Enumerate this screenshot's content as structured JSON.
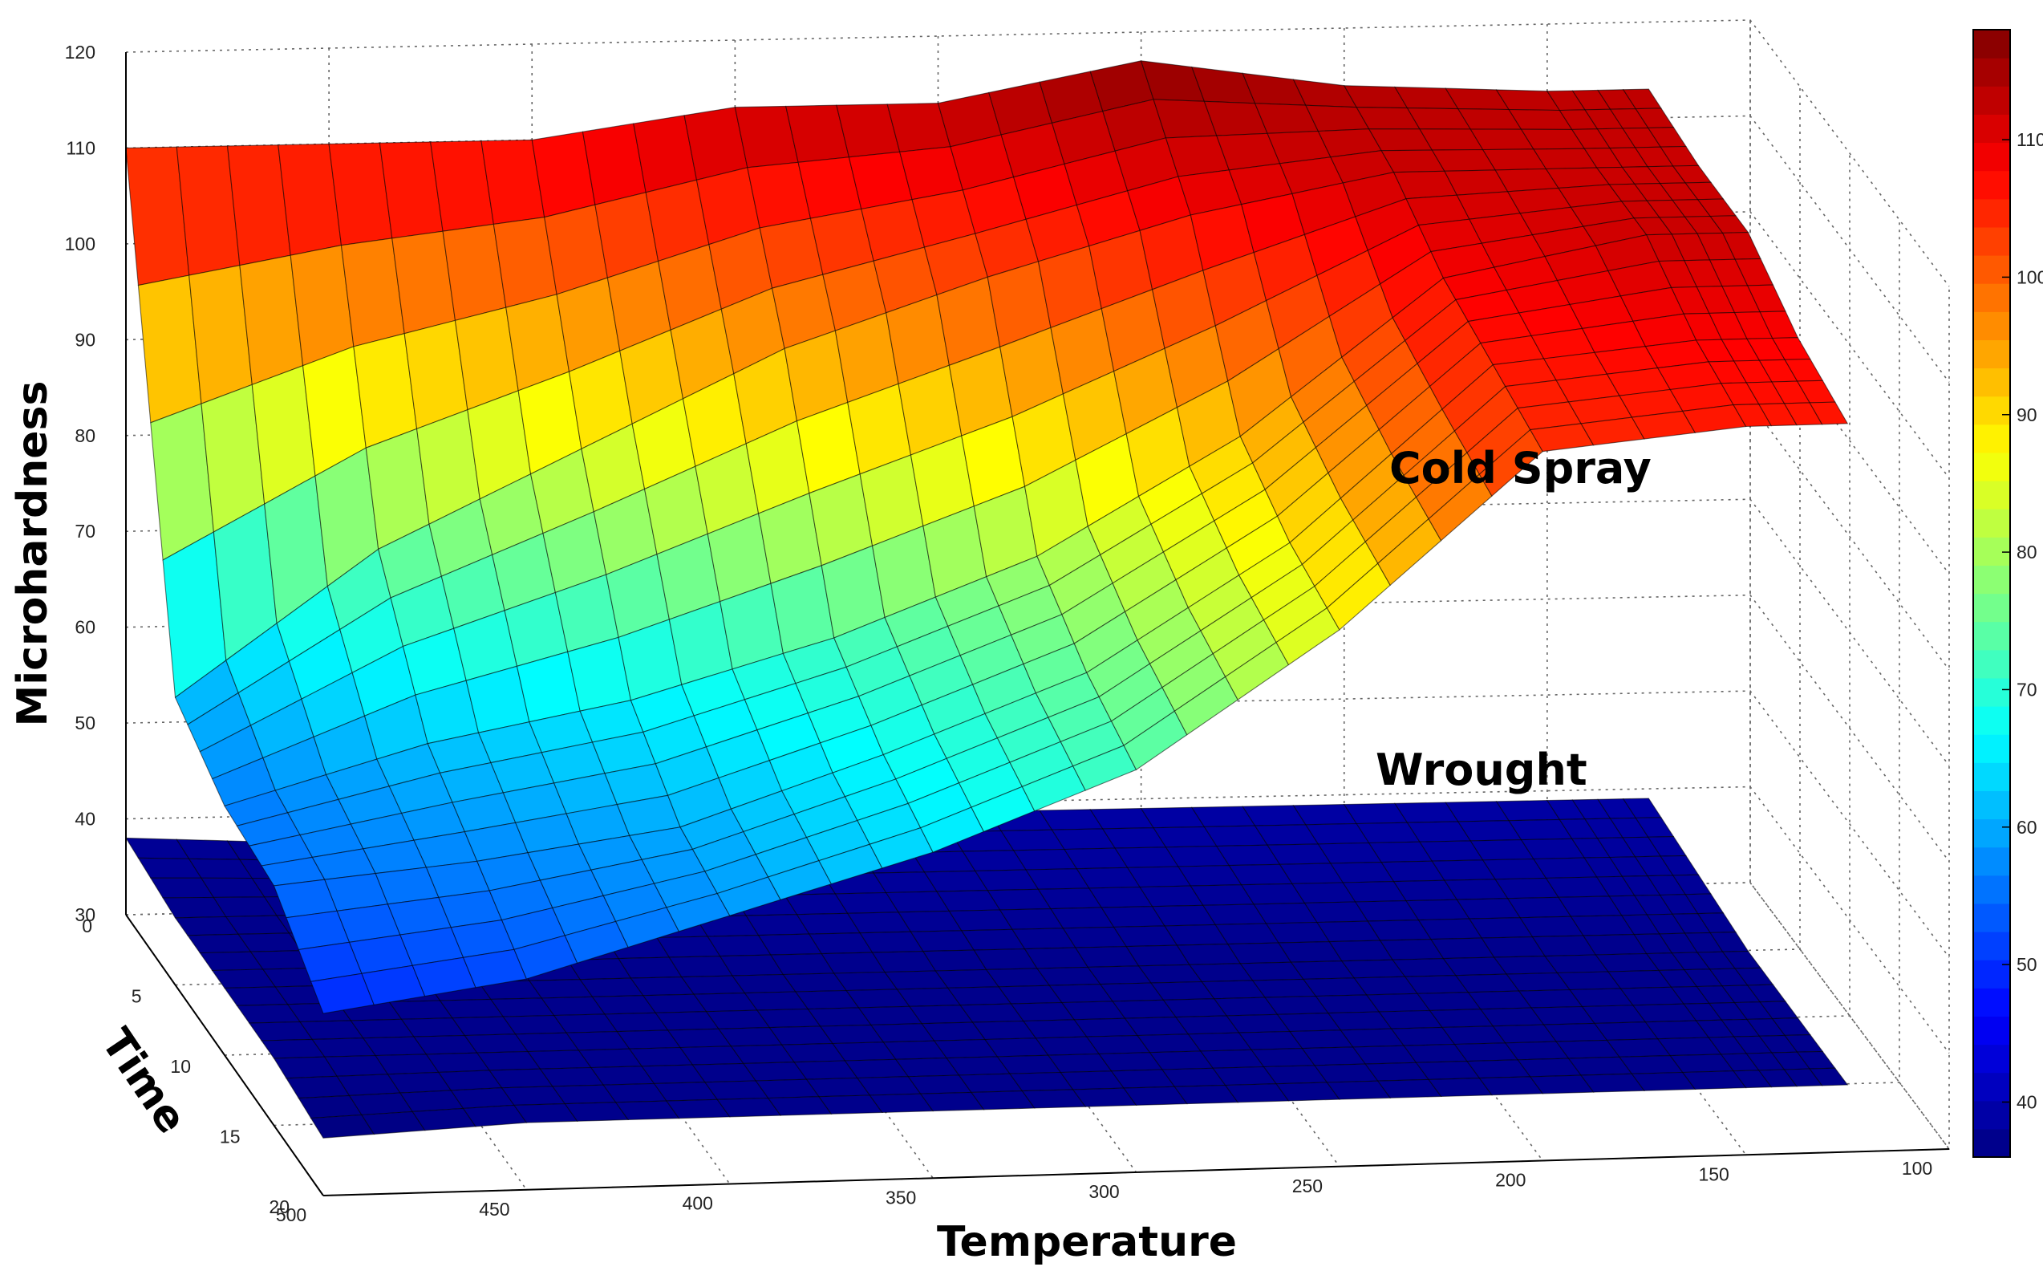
{
  "chart_data": {
    "type": "surface3d",
    "title": "",
    "xlabel": "Temperature",
    "ylabel": "Time",
    "zlabel": "Microhardness",
    "x_ticks": [
      "500",
      "450",
      "400",
      "350",
      "300",
      "250",
      "200",
      "150",
      "100"
    ],
    "y_ticks": [
      "0",
      "5",
      "10",
      "15",
      "20"
    ],
    "z_ticks": [
      "30",
      "40",
      "50",
      "60",
      "70",
      "80",
      "90",
      "100",
      "110",
      "120"
    ],
    "colorbar_ticks": [
      "40",
      "50",
      "60",
      "70",
      "80",
      "90",
      "100",
      "110"
    ],
    "colormap": "jet",
    "colormap_colors": [
      "#00007f",
      "#0000ff",
      "#00ffff",
      "#ffff00",
      "#ff0000",
      "#7f0000"
    ],
    "xlim": [
      100,
      500
    ],
    "ylim": [
      0,
      20
    ],
    "zlim": [
      30,
      120
    ],
    "clim": [
      36,
      118
    ],
    "grid": true,
    "temperatures": [
      500,
      450,
      400,
      350,
      300,
      250,
      200,
      150,
      125
    ],
    "times": [
      0,
      5,
      10,
      15,
      20
    ],
    "series": [
      {
        "name": "Cold Spray",
        "hardness": [
          [
            110,
            110,
            110,
            113,
            113,
            117,
            114,
            113,
            113
          ],
          [
            60,
            75,
            85,
            95,
            102,
            108,
            112,
            112,
            112
          ],
          [
            56,
            62,
            66,
            72,
            80,
            92,
            108,
            112,
            112
          ],
          [
            55,
            57,
            60,
            67,
            75,
            88,
            106,
            108,
            108
          ],
          [
            49,
            52,
            58,
            64,
            72,
            86,
            104,
            106,
            106
          ]
        ]
      },
      {
        "name": "Wrought",
        "hardness": [
          [
            38,
            37,
            38,
            39,
            39,
            39,
            39,
            39,
            39
          ],
          [
            37,
            37,
            38,
            38,
            38,
            38,
            38,
            38,
            38
          ],
          [
            37,
            37,
            37,
            37,
            37,
            37,
            37,
            37,
            37
          ],
          [
            37,
            37,
            37,
            37,
            37,
            37,
            37,
            37,
            37
          ],
          [
            36,
            37,
            37,
            37,
            37,
            37,
            37,
            37,
            37
          ]
        ]
      }
    ]
  }
}
